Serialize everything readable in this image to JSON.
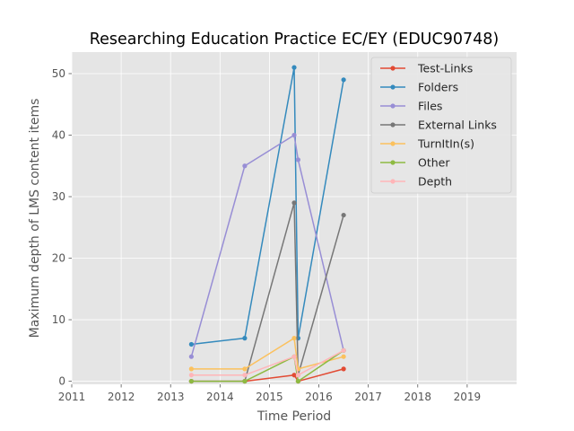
{
  "chart_data": {
    "type": "line",
    "title": "Researching Education Practice EC/EY (EDUC90748)",
    "xlabel": "Time Period",
    "ylabel": "Maximum depth of LMS content items",
    "xlim": [
      2011,
      2020
    ],
    "ylim": [
      -0.5,
      53.5
    ],
    "xticks": [
      "2011",
      "2012",
      "2013",
      "2014",
      "2015",
      "2016",
      "2017",
      "2018",
      "2019"
    ],
    "yticks": [
      "0",
      "10",
      "20",
      "30",
      "40",
      "50"
    ],
    "grid": true,
    "legend_position": "top-right",
    "x": [
      2013.42,
      2014.5,
      2015.5,
      2015.58,
      2016.5
    ],
    "series": [
      {
        "name": "Test-Links",
        "color": "#e24a33",
        "values": [
          0,
          0,
          1,
          0,
          2
        ]
      },
      {
        "name": "Folders",
        "color": "#348abd",
        "values": [
          6,
          7,
          51,
          7,
          49
        ]
      },
      {
        "name": "Files",
        "color": "#988ed5",
        "values": [
          4,
          35,
          40,
          36,
          5
        ]
      },
      {
        "name": "External Links",
        "color": "#777777",
        "values": [
          0,
          0,
          29,
          1,
          27
        ]
      },
      {
        "name": "TurnItIn(s)",
        "color": "#fbc15e",
        "values": [
          2,
          2,
          7,
          2,
          4
        ]
      },
      {
        "name": "Other",
        "color": "#8eba42",
        "values": [
          0,
          0,
          4,
          0,
          5
        ]
      },
      {
        "name": "Depth",
        "color": "#ffb5b8",
        "values": [
          1,
          1,
          4,
          1,
          5
        ]
      }
    ]
  }
}
